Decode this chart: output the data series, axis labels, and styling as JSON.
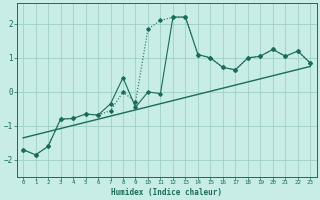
{
  "xlabel": "Humidex (Indice chaleur)",
  "bg_color": "#c8ece6",
  "grid_color": "#a0cfc8",
  "line_color": "#1a6b5a",
  "xlim": [
    -0.5,
    23.5
  ],
  "ylim": [
    -2.5,
    2.6
  ],
  "yticks": [
    -2,
    -1,
    0,
    1,
    2
  ],
  "xticks": [
    0,
    1,
    2,
    3,
    4,
    5,
    6,
    7,
    8,
    9,
    10,
    11,
    12,
    13,
    14,
    15,
    16,
    17,
    18,
    19,
    20,
    21,
    22,
    23
  ],
  "line1_x": [
    0,
    1,
    2,
    3,
    4,
    5,
    6,
    7,
    8,
    9,
    10,
    11,
    12,
    13,
    14,
    15,
    16,
    17,
    18,
    19,
    20,
    21,
    22,
    23
  ],
  "line1_y": [
    -1.7,
    -1.85,
    -1.6,
    -0.8,
    -0.78,
    -0.65,
    -0.68,
    -0.55,
    0.0,
    -0.3,
    1.85,
    2.1,
    2.2,
    2.2,
    1.1,
    1.0,
    0.72,
    0.65,
    1.0,
    1.05,
    1.25,
    1.05,
    1.2,
    0.85
  ],
  "line2_x": [
    0,
    1,
    2,
    3,
    4,
    5,
    6,
    7,
    8,
    9,
    10,
    11,
    12,
    13,
    14,
    15,
    16,
    17,
    18,
    19,
    20,
    21,
    22,
    23
  ],
  "line2_y": [
    -1.7,
    -1.85,
    -1.6,
    -0.8,
    -0.78,
    -0.65,
    -0.68,
    -0.35,
    0.42,
    -0.45,
    0.0,
    -0.05,
    2.2,
    2.2,
    1.1,
    1.0,
    0.72,
    0.65,
    1.0,
    1.05,
    1.25,
    1.05,
    1.2,
    0.85
  ],
  "trend_x": [
    0,
    23
  ],
  "trend_y": [
    -1.35,
    0.75
  ]
}
